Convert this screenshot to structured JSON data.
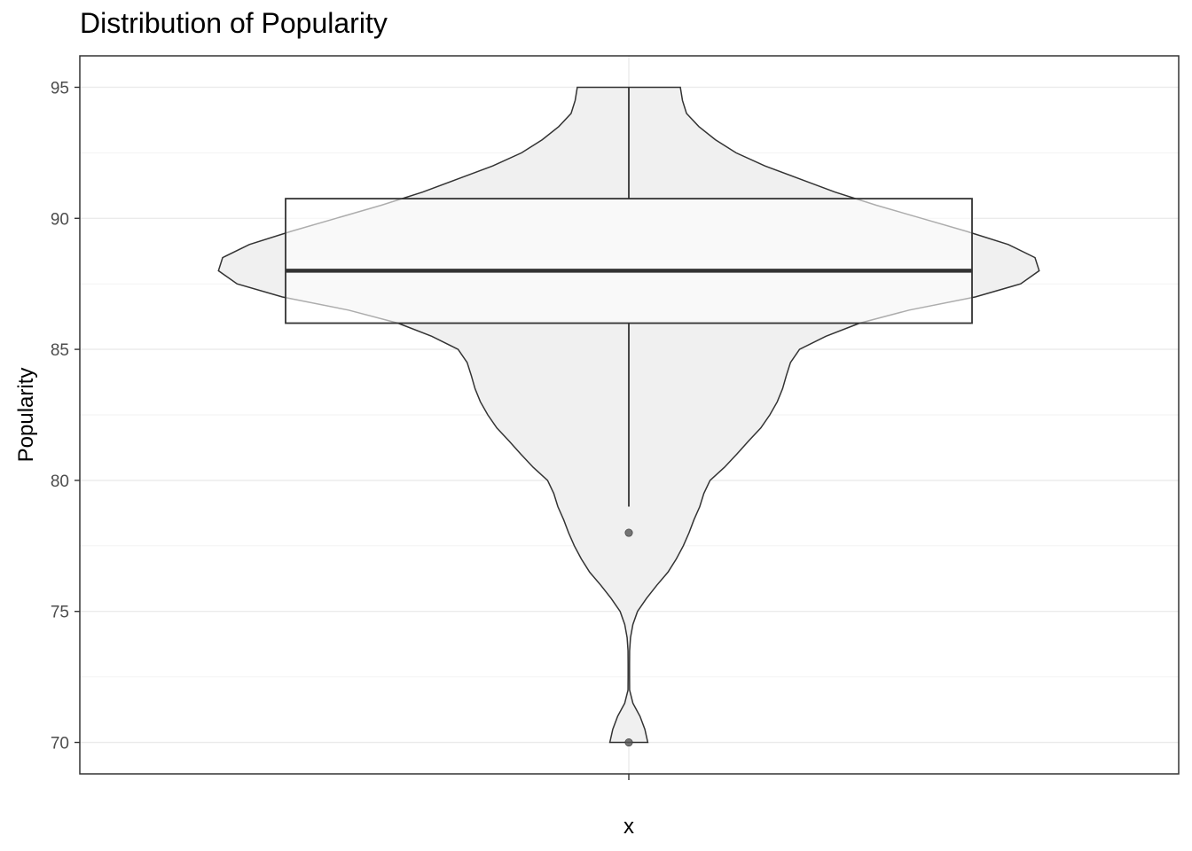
{
  "chart_data": {
    "type": "violin",
    "title": "Distribution of Popularity",
    "xlabel": "",
    "ylabel": "Popularity",
    "categories": [
      "x"
    ],
    "ylim": [
      68.8,
      96.2
    ],
    "y_ticks": [
      70,
      75,
      80,
      85,
      90,
      95
    ],
    "grid": true,
    "boxplot": {
      "q1": 86,
      "median": 88,
      "q3": 90.75,
      "whisker_low": 79,
      "whisker_high": 95,
      "outliers": [
        78,
        70
      ]
    },
    "violin_density": {
      "y": [
        70,
        70.5,
        71,
        71.5,
        72,
        72.5,
        73,
        73.5,
        74,
        74.5,
        75,
        75.5,
        76,
        76.5,
        77,
        77.5,
        78,
        78.5,
        79,
        79.5,
        80,
        80.5,
        81,
        81.5,
        82,
        82.5,
        83,
        83.5,
        84,
        84.5,
        85,
        85.5,
        86,
        86.5,
        87,
        87.5,
        88,
        88.5,
        89,
        89.5,
        90,
        90.5,
        91,
        91.5,
        92,
        92.5,
        93,
        93.5,
        94,
        94.5,
        95
      ],
      "relative_width": [
        0.046,
        0.039,
        0.027,
        0.01,
        0.002,
        0.001,
        0.001,
        0.002,
        0.004,
        0.01,
        0.021,
        0.043,
        0.068,
        0.095,
        0.115,
        0.132,
        0.146,
        0.158,
        0.172,
        0.182,
        0.197,
        0.232,
        0.262,
        0.29,
        0.32,
        0.342,
        0.36,
        0.373,
        0.382,
        0.392,
        0.414,
        0.478,
        0.56,
        0.68,
        0.84,
        0.95,
        0.995,
        0.985,
        0.92,
        0.82,
        0.71,
        0.6,
        0.5,
        0.415,
        0.33,
        0.26,
        0.21,
        0.17,
        0.14,
        0.13,
        0.125
      ]
    }
  }
}
